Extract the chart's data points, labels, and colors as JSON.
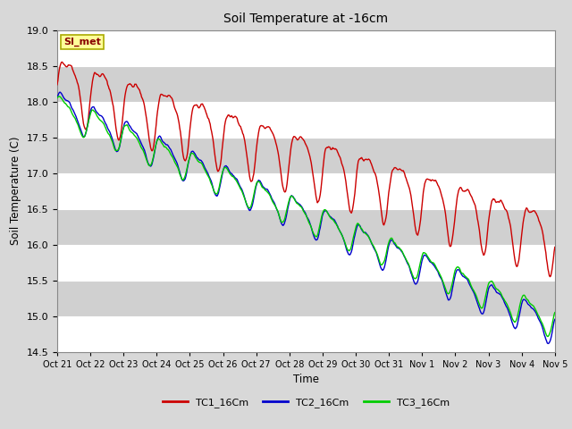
{
  "title": "Soil Temperature at -16cm",
  "xlabel": "Time",
  "ylabel": "Soil Temperature (C)",
  "ylim": [
    14.5,
    19.0
  ],
  "yticks": [
    14.5,
    15.0,
    15.5,
    16.0,
    16.5,
    17.0,
    17.5,
    18.0,
    18.5,
    19.0
  ],
  "xtick_labels": [
    "Oct 21",
    "Oct 22",
    "Oct 23",
    "Oct 24",
    "Oct 25",
    "Oct 26",
    "Oct 27",
    "Oct 28",
    "Oct 29",
    "Oct 30",
    "Oct 31",
    "Nov 1",
    "Nov 2",
    "Nov 3",
    "Nov 4",
    "Nov 5"
  ],
  "bg_color": "#d8d8d8",
  "plot_bg_color": "#e8e8e8",
  "stripe_color": "#d0d0d0",
  "grid_color": "#ffffff",
  "line_colors": {
    "TC1_16Cm": "#cc0000",
    "TC2_16Cm": "#0000cc",
    "TC3_16Cm": "#00cc00"
  },
  "legend_label": "SI_met",
  "legend_bg": "#ffff99",
  "legend_border": "#aaaa00",
  "n_points": 720,
  "tc1_amp": 0.35,
  "tc2_amp": 0.18,
  "tc3_amp": 0.16
}
